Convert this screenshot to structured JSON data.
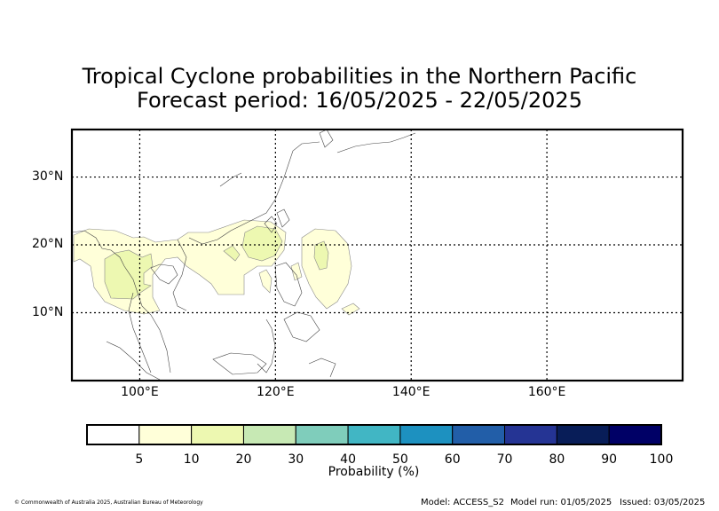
{
  "title": {
    "line1": "Tropical Cyclone probabilities in the Northern Pacific",
    "line2": "Forecast period: 16/05/2025 - 22/05/2025"
  },
  "map": {
    "lon_range": [
      90,
      180
    ],
    "lat_range": [
      0,
      37
    ],
    "lat_ticks": [
      {
        "value": 10,
        "label": "10°N"
      },
      {
        "value": 20,
        "label": "20°N"
      },
      {
        "value": 30,
        "label": "30°N"
      }
    ],
    "lon_ticks": [
      {
        "value": 100,
        "label": "100°E"
      },
      {
        "value": 120,
        "label": "120°E"
      },
      {
        "value": 140,
        "label": "140°E"
      },
      {
        "value": 160,
        "label": "160°E"
      }
    ],
    "gridlines": "dotted"
  },
  "colorbar": {
    "title": "Probability (%)",
    "ticks": [
      "5",
      "10",
      "20",
      "30",
      "40",
      "50",
      "60",
      "70",
      "80",
      "90",
      "100"
    ],
    "colors": [
      "#ffffff",
      "#ffffd9",
      "#edf8b1",
      "#c7e9b4",
      "#7fcdbb",
      "#41b6c4",
      "#1d91c0",
      "#225ea8",
      "#253494",
      "#081d58",
      "#000066"
    ]
  },
  "footer": {
    "copyright": "© Commonwealth of Australia 2025, Australian Bureau of Meteorology",
    "model": "Model: ACCESS_S2",
    "run": "Model run: 01/05/2025",
    "issued": "Issued: 03/05/2025"
  }
}
